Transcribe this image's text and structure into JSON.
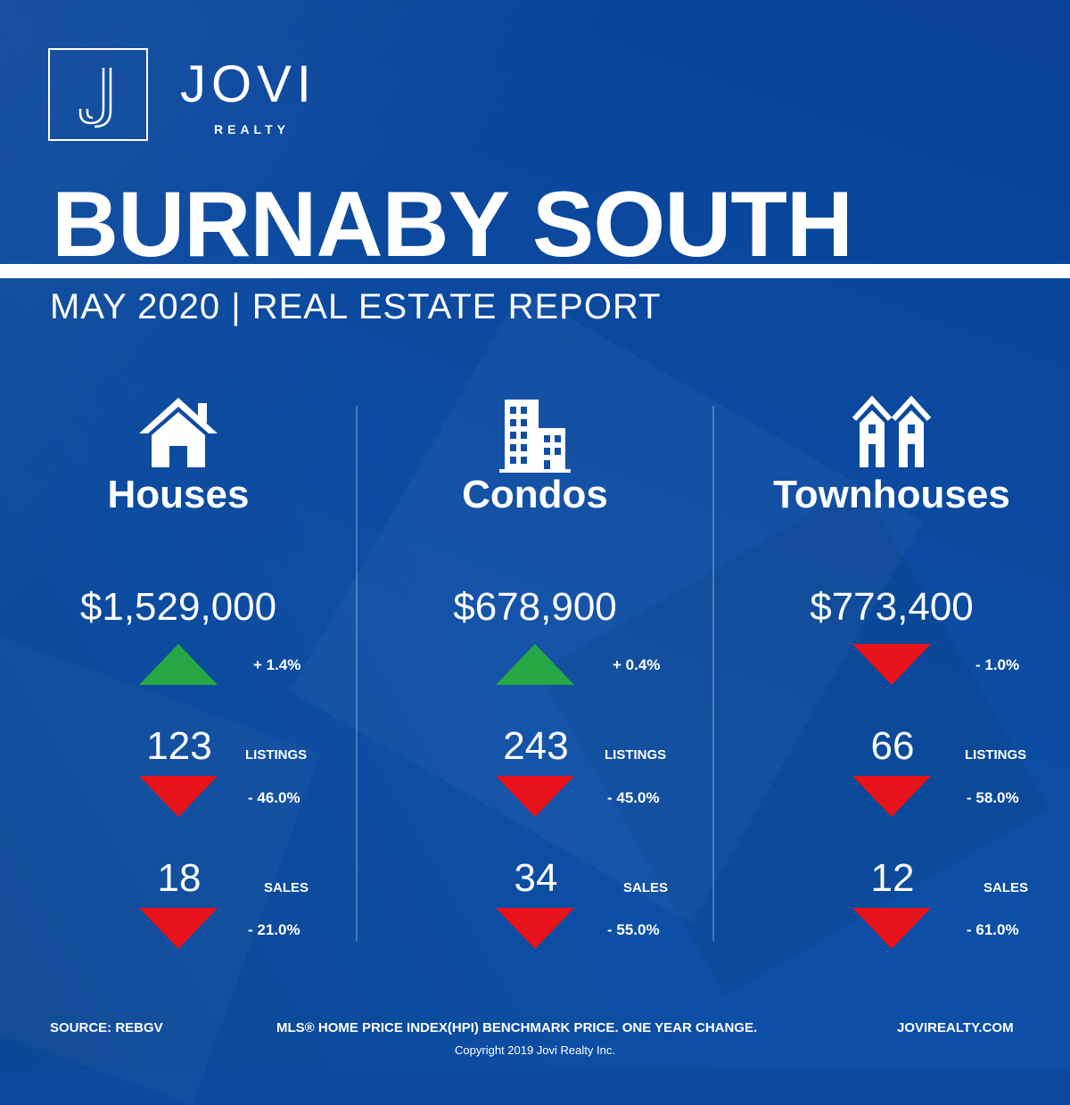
{
  "brand": {
    "name": "JOVI",
    "sub": "REALTY",
    "logo_letter": "J"
  },
  "title": "BURNABY SOUTH",
  "subtitle": "MAY 2020 | REAL ESTATE REPORT",
  "columns": [
    {
      "category": "Houses",
      "icon": "house-icon",
      "price": "$1,529,000",
      "price_change": "+ 1.4%",
      "price_trend": "up",
      "listings": "123",
      "listings_label": "LISTINGS",
      "listings_change": "- 46.0%",
      "listings_trend": "down",
      "sales": "18",
      "sales_label": "SALES",
      "sales_change": "- 21.0%",
      "sales_trend": "down"
    },
    {
      "category": "Condos",
      "icon": "building-icon",
      "price": "$678,900",
      "price_change": "+ 0.4%",
      "price_trend": "up",
      "listings": "243",
      "listings_label": "LISTINGS",
      "listings_change": "- 45.0%",
      "listings_trend": "down",
      "sales": "34",
      "sales_label": "SALES",
      "sales_change": "- 55.0%",
      "sales_trend": "down"
    },
    {
      "category": "Townhouses",
      "icon": "townhouse-icon",
      "price": "$773,400",
      "price_change": "- 1.0%",
      "price_trend": "down",
      "listings": "66",
      "listings_label": "LISTINGS",
      "listings_change": "- 58.0%",
      "listings_trend": "down",
      "sales": "12",
      "sales_label": "SALES",
      "sales_change": "- 61.0%",
      "sales_trend": "down"
    }
  ],
  "footer": {
    "source": "SOURCE:  REBGV",
    "note": "MLS® HOME PRICE INDEX(HPI) BENCHMARK PRICE. ONE YEAR CHANGE.",
    "website": "JOVIREALTY.COM",
    "copyright": "Copyright 2019 Jovi Realty Inc."
  },
  "colors": {
    "background": "#0d4fa6",
    "up": "#27a844",
    "down": "#e8121a"
  }
}
